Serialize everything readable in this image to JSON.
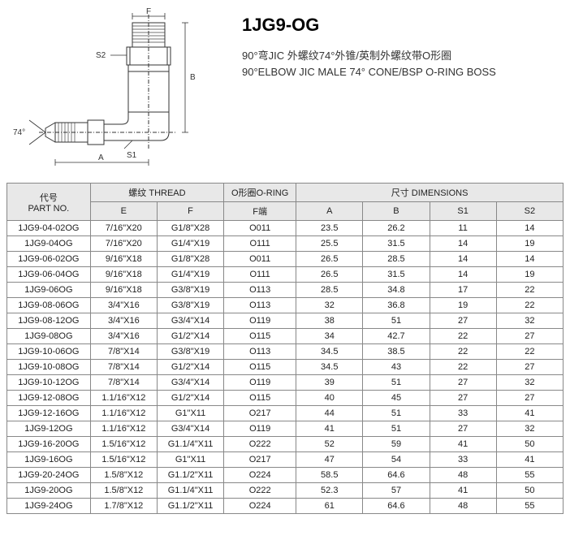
{
  "header": {
    "part_code": "1JG9-OG",
    "desc_zh": "90°弯JIC 外螺纹74°外锥/英制外螺纹带O形圈",
    "desc_en": "90°ELBOW JIC MALE 74° CONE/BSP O-RING BOSS"
  },
  "diagram": {
    "labels": {
      "F": "F",
      "B": "B",
      "S1": "S1",
      "S2": "S2",
      "A": "A",
      "angle": "74°"
    }
  },
  "table": {
    "group_headers": {
      "partno_zh": "代号",
      "partno_en": "PART NO.",
      "thread_zh": "螺纹",
      "thread_en": "THREAD",
      "oring_zh": "O形圈",
      "oring_en": "O-RING",
      "dims_zh": "尺寸",
      "dims_en": "DIMENSIONS"
    },
    "col_headers": {
      "E": "E",
      "F": "F",
      "Fend": "F端",
      "A": "A",
      "B": "B",
      "S1": "S1",
      "S2": "S2"
    },
    "rows": [
      {
        "part": "1JG9-04-02OG",
        "E": "7/16\"X20",
        "F": "G1/8\"X28",
        "Fend": "O011",
        "A": "23.5",
        "B": "26.2",
        "S1": "11",
        "S2": "14"
      },
      {
        "part": "1JG9-04OG",
        "E": "7/16\"X20",
        "F": "G1/4\"X19",
        "Fend": "O111",
        "A": "25.5",
        "B": "31.5",
        "S1": "14",
        "S2": "19"
      },
      {
        "part": "1JG9-06-02OG",
        "E": "9/16\"X18",
        "F": "G1/8\"X28",
        "Fend": "O011",
        "A": "26.5",
        "B": "28.5",
        "S1": "14",
        "S2": "14"
      },
      {
        "part": "1JG9-06-04OG",
        "E": "9/16\"X18",
        "F": "G1/4\"X19",
        "Fend": "O111",
        "A": "26.5",
        "B": "31.5",
        "S1": "14",
        "S2": "19"
      },
      {
        "part": "1JG9-06OG",
        "E": "9/16\"X18",
        "F": "G3/8\"X19",
        "Fend": "O113",
        "A": "28.5",
        "B": "34.8",
        "S1": "17",
        "S2": "22"
      },
      {
        "part": "1JG9-08-06OG",
        "E": "3/4\"X16",
        "F": "G3/8\"X19",
        "Fend": "O113",
        "A": "32",
        "B": "36.8",
        "S1": "19",
        "S2": "22"
      },
      {
        "part": "1JG9-08-12OG",
        "E": "3/4\"X16",
        "F": "G3/4\"X14",
        "Fend": "O119",
        "A": "38",
        "B": "51",
        "S1": "27",
        "S2": "32"
      },
      {
        "part": "1JG9-08OG",
        "E": "3/4\"X16",
        "F": "G1/2\"X14",
        "Fend": "O115",
        "A": "34",
        "B": "42.7",
        "S1": "22",
        "S2": "27"
      },
      {
        "part": "1JG9-10-06OG",
        "E": "7/8\"X14",
        "F": "G3/8\"X19",
        "Fend": "O113",
        "A": "34.5",
        "B": "38.5",
        "S1": "22",
        "S2": "22"
      },
      {
        "part": "1JG9-10-08OG",
        "E": "7/8\"X14",
        "F": "G1/2\"X14",
        "Fend": "O115",
        "A": "34.5",
        "B": "43",
        "S1": "22",
        "S2": "27"
      },
      {
        "part": "1JG9-10-12OG",
        "E": "7/8\"X14",
        "F": "G3/4\"X14",
        "Fend": "O119",
        "A": "39",
        "B": "51",
        "S1": "27",
        "S2": "32"
      },
      {
        "part": "1JG9-12-08OG",
        "E": "1.1/16\"X12",
        "F": "G1/2\"X14",
        "Fend": "O115",
        "A": "40",
        "B": "45",
        "S1": "27",
        "S2": "27"
      },
      {
        "part": "1JG9-12-16OG",
        "E": "1.1/16\"X12",
        "F": "G1\"X11",
        "Fend": "O217",
        "A": "44",
        "B": "51",
        "S1": "33",
        "S2": "41"
      },
      {
        "part": "1JG9-12OG",
        "E": "1.1/16\"X12",
        "F": "G3/4\"X14",
        "Fend": "O119",
        "A": "41",
        "B": "51",
        "S1": "27",
        "S2": "32"
      },
      {
        "part": "1JG9-16-20OG",
        "E": "1.5/16\"X12",
        "F": "G1.1/4\"X11",
        "Fend": "O222",
        "A": "52",
        "B": "59",
        "S1": "41",
        "S2": "50"
      },
      {
        "part": "1JG9-16OG",
        "E": "1.5/16\"X12",
        "F": "G1\"X11",
        "Fend": "O217",
        "A": "47",
        "B": "54",
        "S1": "33",
        "S2": "41"
      },
      {
        "part": "1JG9-20-24OG",
        "E": "1.5/8\"X12",
        "F": "G1.1/2\"X11",
        "Fend": "O224",
        "A": "58.5",
        "B": "64.6",
        "S1": "48",
        "S2": "55"
      },
      {
        "part": "1JG9-20OG",
        "E": "1.5/8\"X12",
        "F": "G1.1/4\"X11",
        "Fend": "O222",
        "A": "52.3",
        "B": "57",
        "S1": "41",
        "S2": "50"
      },
      {
        "part": "1JG9-24OG",
        "E": "1.7/8\"X12",
        "F": "G1.1/2\"X11",
        "Fend": "O224",
        "A": "61",
        "B": "64.6",
        "S1": "48",
        "S2": "55"
      }
    ]
  },
  "styling": {
    "header_bg": "#e8e8e8",
    "border_color": "#888",
    "font_size_table": 11,
    "font_size_title": 22,
    "font_size_desc": 13,
    "text_color": "#222"
  }
}
